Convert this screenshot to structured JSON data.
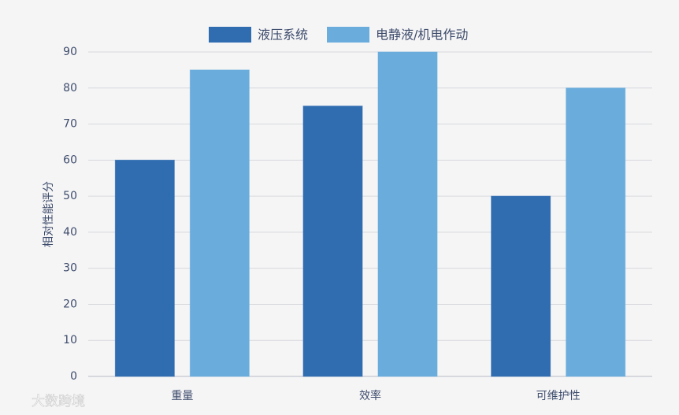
{
  "chart_data": {
    "type": "bar",
    "y_label": "相对性能评分",
    "categories": [
      "重量",
      "效率",
      "可维护性"
    ],
    "series": [
      {
        "name": "液压系统",
        "color": "#2f6cb0",
        "values": [
          60,
          75,
          50
        ]
      },
      {
        "name": "电静液/机电作动",
        "color": "#6aaddc",
        "values": [
          85,
          90,
          80
        ]
      }
    ],
    "ylim": [
      0,
      90
    ],
    "yticks": [
      0,
      10,
      20,
      30,
      40,
      50,
      60,
      70,
      80,
      90
    ],
    "grid": true,
    "legend": "top"
  },
  "watermark": "大数跨境"
}
